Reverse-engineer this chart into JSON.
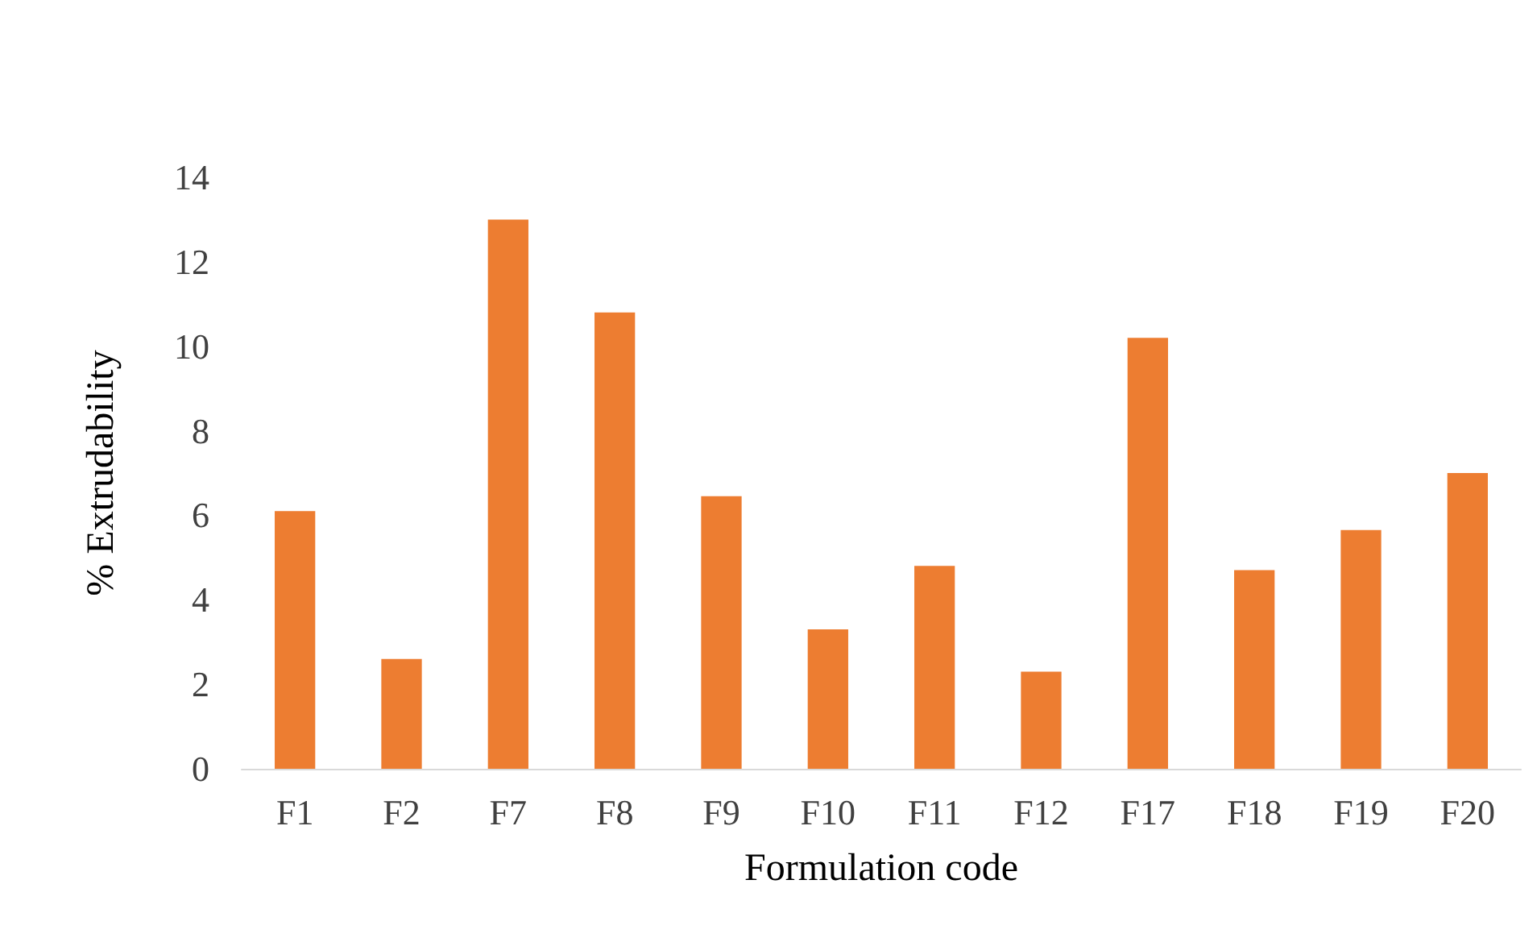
{
  "chart_data": {
    "type": "bar",
    "xlabel": "Formulation code",
    "ylabel": "% Extrudability",
    "categories": [
      "F1",
      "F2",
      "F7",
      "F8",
      "F9",
      "F10",
      "F11",
      "F12",
      "F17",
      "F18",
      "F19",
      "F20"
    ],
    "values": [
      6.1,
      2.6,
      13.0,
      10.8,
      6.45,
      3.3,
      4.8,
      2.3,
      10.2,
      4.7,
      5.65,
      7.0
    ],
    "color": "#ed7d31",
    "ylim": [
      0,
      14
    ],
    "yticks": [
      0,
      2,
      4,
      6,
      8,
      10,
      12,
      14
    ]
  }
}
